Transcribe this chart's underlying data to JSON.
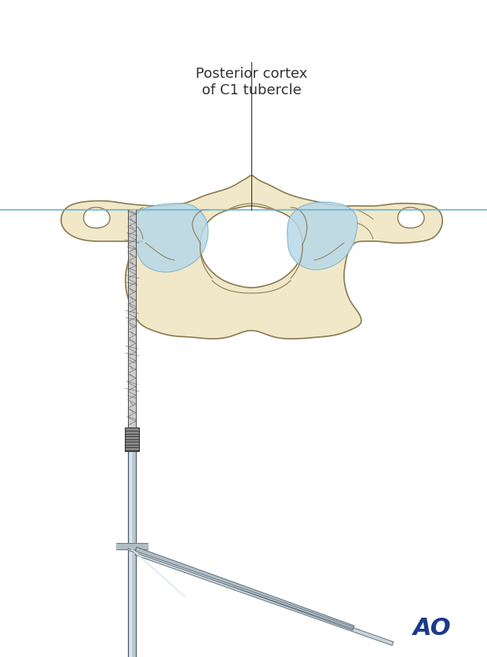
{
  "bg_color": "#ffffff",
  "bone_fill": "#f0e8c8",
  "bone_stroke": "#8a7a50",
  "blue_fill": "#b8d8e8",
  "blue_stroke": "#7ab0c8",
  "drill_color": "#a8b8c8",
  "drill_dark": "#708090",
  "drill_outline": "#506070",
  "knurl_color": "#555555",
  "line_color": "#4a4a6a",
  "blue_line_color": "#6ab0d0",
  "arrow_line_color": "#333333",
  "title_color": "#333333",
  "ao_color": "#1a3a8a",
  "title_text": "Posterior cortex\nof C1 tubercle",
  "title_fontsize": 13,
  "ao_fontsize": 22,
  "figsize": [
    6.2,
    8.37
  ],
  "dpi": 100
}
